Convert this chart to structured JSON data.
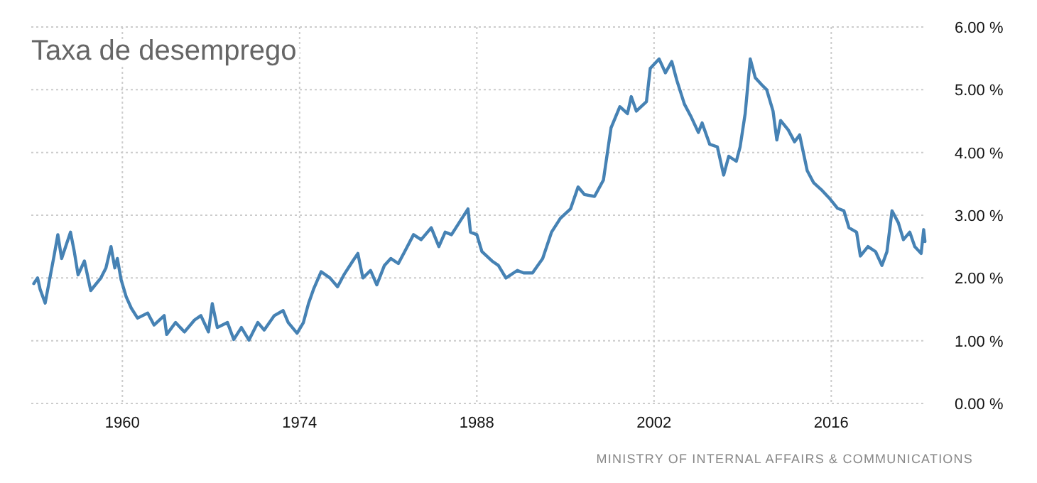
{
  "chart_data": {
    "type": "line",
    "title": "Taxa de desemprego",
    "annotations": [
      "MINISTRY OF INTERNAL AFFAIRS & COMMUNICATIONS"
    ],
    "x": [
      1953.0,
      1953.3,
      1953.5,
      1953.9,
      1954.6,
      1954.9,
      1955.2,
      1955.9,
      1956.2,
      1956.5,
      1957.0,
      1957.5,
      1958.3,
      1958.7,
      1959.1,
      1959.4,
      1959.6,
      1959.9,
      1960.3,
      1960.7,
      1961.2,
      1962.0,
      1962.5,
      1963.3,
      1963.5,
      1964.2,
      1964.9,
      1965.7,
      1966.2,
      1966.8,
      1967.1,
      1967.5,
      1968.3,
      1968.8,
      1969.4,
      1970.0,
      1970.7,
      1971.2,
      1972.0,
      1972.7,
      1973.1,
      1973.8,
      1974.3,
      1974.7,
      1975.1,
      1975.7,
      1976.4,
      1977.0,
      1977.5,
      1978.2,
      1978.6,
      1979.0,
      1979.6,
      1980.1,
      1980.7,
      1981.2,
      1981.8,
      1982.3,
      1983.0,
      1983.6,
      1984.4,
      1985.0,
      1985.5,
      1986.0,
      1986.6,
      1987.3,
      1987.5,
      1988.0,
      1988.4,
      1989.2,
      1989.7,
      1990.3,
      1991.2,
      1991.7,
      1992.4,
      1993.2,
      1993.9,
      1994.6,
      1995.4,
      1996.0,
      1996.5,
      1997.3,
      1998.0,
      1998.6,
      1999.3,
      1999.9,
      2000.2,
      2000.6,
      2001.4,
      2001.7,
      2002.4,
      2002.9,
      2003.4,
      2003.8,
      2004.4,
      2004.9,
      2005.5,
      2005.8,
      2006.4,
      2007.0,
      2007.5,
      2007.9,
      2008.5,
      2008.8,
      2009.2,
      2009.6,
      2010.0,
      2010.5,
      2010.9,
      2011.4,
      2011.7,
      2012.0,
      2012.6,
      2013.1,
      2013.5,
      2014.1,
      2014.6,
      2015.2,
      2015.9,
      2016.5,
      2017.0,
      2017.4,
      2018.0,
      2018.3,
      2018.9,
      2019.5,
      2020.0,
      2020.4,
      2020.8,
      2021.3,
      2021.7,
      2022.2,
      2022.6,
      2023.1,
      2023.3,
      2023.4
    ],
    "series": [
      {
        "color": "#4682b4",
        "values": [
          1.91,
          2.0,
          1.82,
          1.6,
          2.35,
          2.69,
          2.31,
          2.73,
          2.42,
          2.05,
          2.27,
          1.8,
          2.0,
          2.16,
          2.5,
          2.16,
          2.31,
          1.97,
          1.7,
          1.52,
          1.36,
          1.44,
          1.25,
          1.4,
          1.1,
          1.29,
          1.14,
          1.33,
          1.4,
          1.14,
          1.59,
          1.21,
          1.29,
          1.02,
          1.21,
          1.01,
          1.29,
          1.17,
          1.4,
          1.48,
          1.29,
          1.12,
          1.29,
          1.59,
          1.82,
          2.1,
          2.0,
          1.86,
          2.05,
          2.27,
          2.39,
          2.0,
          2.12,
          1.89,
          2.2,
          2.31,
          2.23,
          2.42,
          2.69,
          2.61,
          2.8,
          2.5,
          2.73,
          2.69,
          2.88,
          3.1,
          2.73,
          2.69,
          2.42,
          2.27,
          2.2,
          2.0,
          2.12,
          2.08,
          2.08,
          2.31,
          2.73,
          2.95,
          3.1,
          3.45,
          3.33,
          3.3,
          3.56,
          4.39,
          4.73,
          4.62,
          4.89,
          4.66,
          4.81,
          5.34,
          5.49,
          5.27,
          5.45,
          5.15,
          4.77,
          4.58,
          4.32,
          4.47,
          4.13,
          4.09,
          3.64,
          3.94,
          3.86,
          4.09,
          4.62,
          5.49,
          5.19,
          5.08,
          5.0,
          4.66,
          4.2,
          4.51,
          4.36,
          4.17,
          4.28,
          3.71,
          3.52,
          3.41,
          3.26,
          3.11,
          3.07,
          2.8,
          2.73,
          2.35,
          2.5,
          2.42,
          2.2,
          2.42,
          3.07,
          2.88,
          2.61,
          2.73,
          2.5,
          2.39,
          2.77,
          2.58
        ]
      }
    ],
    "xlim": [
      1952.8,
      2023.5
    ],
    "xticks": [
      1960,
      1974,
      1988,
      2002,
      2016
    ],
    "ylim": [
      0,
      6
    ],
    "yticks": [
      {
        "value": 0,
        "label": "0.00 %"
      },
      {
        "value": 1,
        "label": "1.00 %"
      },
      {
        "value": 2,
        "label": "2.00 %"
      },
      {
        "value": 3,
        "label": "3.00 %"
      },
      {
        "value": 4,
        "label": "4.00 %"
      },
      {
        "value": 5,
        "label": "5.00 %"
      },
      {
        "value": 6,
        "label": "6.00 %"
      }
    ],
    "grid": true
  }
}
